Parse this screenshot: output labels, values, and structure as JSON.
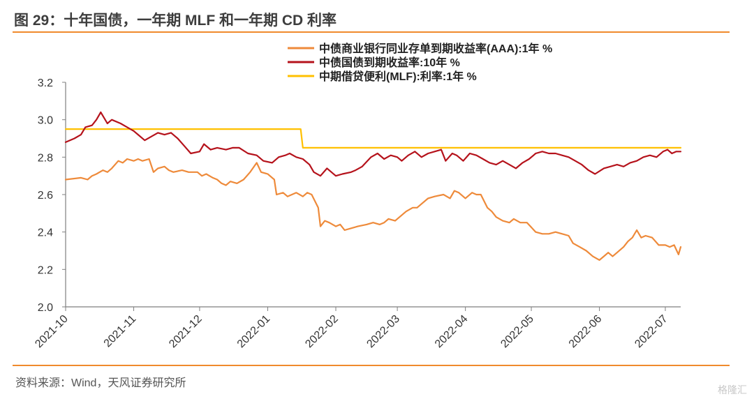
{
  "header": {
    "title": "图 29：十年国债，一年期 MLF 和一年期 CD 利率"
  },
  "footer": {
    "source": "资料来源：Wind，天风证券研究所",
    "watermark": "格隆汇"
  },
  "colors": {
    "cd": "#ee8a3a",
    "bond": "#b5121b",
    "mlf": "#ffc000",
    "accent_rule": "#f08a2c",
    "axis": "#7f7f7f"
  },
  "chart_data": {
    "type": "line",
    "title": "",
    "xlabel": "",
    "ylabel": "",
    "ylim": [
      2.0,
      3.2
    ],
    "yticks": [
      "2.0",
      "2.2",
      "2.4",
      "2.6",
      "2.8",
      "3.0",
      "3.2"
    ],
    "x_range": [
      "2021-10-01",
      "2022-07-08"
    ],
    "xticks": [
      "2021-10",
      "2021-11",
      "2021-12",
      "2022-01",
      "2022-02",
      "2022-03",
      "2022-04",
      "2022-05",
      "2022-06",
      "2022-07"
    ],
    "grid": false,
    "legend_position": "top",
    "series": [
      {
        "name": "中债商业银行同业存单到期收益率(AAA):1年 %",
        "color": "#ee8a3a",
        "points": [
          [
            "2021-10-01",
            2.68
          ],
          [
            "2021-10-08",
            2.69
          ],
          [
            "2021-10-11",
            2.68
          ],
          [
            "2021-10-13",
            2.7
          ],
          [
            "2021-10-15",
            2.71
          ],
          [
            "2021-10-18",
            2.73
          ],
          [
            "2021-10-20",
            2.72
          ],
          [
            "2021-10-22",
            2.74
          ],
          [
            "2021-10-25",
            2.78
          ],
          [
            "2021-10-27",
            2.77
          ],
          [
            "2021-10-29",
            2.79
          ],
          [
            "2021-11-01",
            2.78
          ],
          [
            "2021-11-03",
            2.79
          ],
          [
            "2021-11-05",
            2.78
          ],
          [
            "2021-11-08",
            2.79
          ],
          [
            "2021-11-10",
            2.72
          ],
          [
            "2021-11-12",
            2.74
          ],
          [
            "2021-11-15",
            2.75
          ],
          [
            "2021-11-17",
            2.73
          ],
          [
            "2021-11-19",
            2.72
          ],
          [
            "2021-11-23",
            2.73
          ],
          [
            "2021-11-26",
            2.72
          ],
          [
            "2021-11-30",
            2.72
          ],
          [
            "2021-12-02",
            2.7
          ],
          [
            "2021-12-04",
            2.71
          ],
          [
            "2021-12-07",
            2.69
          ],
          [
            "2021-12-09",
            2.68
          ],
          [
            "2021-12-11",
            2.66
          ],
          [
            "2021-12-13",
            2.65
          ],
          [
            "2021-12-15",
            2.67
          ],
          [
            "2021-12-18",
            2.66
          ],
          [
            "2021-12-21",
            2.68
          ],
          [
            "2021-12-24",
            2.72
          ],
          [
            "2021-12-27",
            2.77
          ],
          [
            "2021-12-29",
            2.72
          ],
          [
            "2022-01-01",
            2.71
          ],
          [
            "2022-01-04",
            2.68
          ],
          [
            "2022-01-05",
            2.6
          ],
          [
            "2022-01-08",
            2.61
          ],
          [
            "2022-01-10",
            2.59
          ],
          [
            "2022-01-12",
            2.6
          ],
          [
            "2022-01-14",
            2.61
          ],
          [
            "2022-01-17",
            2.59
          ],
          [
            "2022-01-19",
            2.61
          ],
          [
            "2022-01-21",
            2.6
          ],
          [
            "2022-01-24",
            2.53
          ],
          [
            "2022-01-25",
            2.43
          ],
          [
            "2022-01-27",
            2.46
          ],
          [
            "2022-01-29",
            2.45
          ],
          [
            "2022-02-01",
            2.43
          ],
          [
            "2022-02-03",
            2.44
          ],
          [
            "2022-02-05",
            2.41
          ],
          [
            "2022-02-08",
            2.42
          ],
          [
            "2022-02-11",
            2.43
          ],
          [
            "2022-02-15",
            2.44
          ],
          [
            "2022-02-18",
            2.45
          ],
          [
            "2022-02-21",
            2.44
          ],
          [
            "2022-02-23",
            2.45
          ],
          [
            "2022-02-25",
            2.47
          ],
          [
            "2022-02-28",
            2.46
          ],
          [
            "2022-03-02",
            2.48
          ],
          [
            "2022-03-05",
            2.51
          ],
          [
            "2022-03-08",
            2.53
          ],
          [
            "2022-03-10",
            2.53
          ],
          [
            "2022-03-12",
            2.55
          ],
          [
            "2022-03-15",
            2.58
          ],
          [
            "2022-03-18",
            2.59
          ],
          [
            "2022-03-22",
            2.6
          ],
          [
            "2022-03-25",
            2.58
          ],
          [
            "2022-03-27",
            2.62
          ],
          [
            "2022-03-29",
            2.61
          ],
          [
            "2022-04-01",
            2.58
          ],
          [
            "2022-04-04",
            2.61
          ],
          [
            "2022-04-06",
            2.6
          ],
          [
            "2022-04-08",
            2.6
          ],
          [
            "2022-04-11",
            2.53
          ],
          [
            "2022-04-13",
            2.51
          ],
          [
            "2022-04-15",
            2.48
          ],
          [
            "2022-04-18",
            2.46
          ],
          [
            "2022-04-21",
            2.45
          ],
          [
            "2022-04-23",
            2.47
          ],
          [
            "2022-04-26",
            2.45
          ],
          [
            "2022-04-29",
            2.45
          ],
          [
            "2022-05-03",
            2.4
          ],
          [
            "2022-05-06",
            2.39
          ],
          [
            "2022-05-09",
            2.39
          ],
          [
            "2022-05-12",
            2.4
          ],
          [
            "2022-05-15",
            2.39
          ],
          [
            "2022-05-18",
            2.38
          ],
          [
            "2022-05-20",
            2.34
          ],
          [
            "2022-05-23",
            2.32
          ],
          [
            "2022-05-26",
            2.3
          ],
          [
            "2022-05-29",
            2.27
          ],
          [
            "2022-06-01",
            2.25
          ],
          [
            "2022-06-03",
            2.27
          ],
          [
            "2022-06-05",
            2.29
          ],
          [
            "2022-06-07",
            2.27
          ],
          [
            "2022-06-09",
            2.29
          ],
          [
            "2022-06-12",
            2.32
          ],
          [
            "2022-06-14",
            2.35
          ],
          [
            "2022-06-16",
            2.37
          ],
          [
            "2022-06-18",
            2.41
          ],
          [
            "2022-06-20",
            2.37
          ],
          [
            "2022-06-22",
            2.38
          ],
          [
            "2022-06-25",
            2.37
          ],
          [
            "2022-06-28",
            2.33
          ],
          [
            "2022-07-01",
            2.33
          ],
          [
            "2022-07-03",
            2.32
          ],
          [
            "2022-07-05",
            2.33
          ],
          [
            "2022-07-07",
            2.28
          ],
          [
            "2022-07-08",
            2.32
          ]
        ]
      },
      {
        "name": "中债国债到期收益率:10年 %",
        "color": "#b5121b",
        "points": [
          [
            "2021-10-01",
            2.88
          ],
          [
            "2021-10-05",
            2.9
          ],
          [
            "2021-10-08",
            2.92
          ],
          [
            "2021-10-10",
            2.96
          ],
          [
            "2021-10-13",
            2.97
          ],
          [
            "2021-10-15",
            3.0
          ],
          [
            "2021-10-17",
            3.04
          ],
          [
            "2021-10-20",
            2.98
          ],
          [
            "2021-10-22",
            3.0
          ],
          [
            "2021-10-26",
            2.98
          ],
          [
            "2021-10-29",
            2.96
          ],
          [
            "2021-11-01",
            2.94
          ],
          [
            "2021-11-03",
            2.92
          ],
          [
            "2021-11-06",
            2.89
          ],
          [
            "2021-11-09",
            2.91
          ],
          [
            "2021-11-12",
            2.93
          ],
          [
            "2021-11-15",
            2.92
          ],
          [
            "2021-11-18",
            2.93
          ],
          [
            "2021-11-21",
            2.9
          ],
          [
            "2021-11-24",
            2.86
          ],
          [
            "2021-11-27",
            2.82
          ],
          [
            "2021-12-01",
            2.83
          ],
          [
            "2021-12-03",
            2.87
          ],
          [
            "2021-12-06",
            2.84
          ],
          [
            "2021-12-09",
            2.85
          ],
          [
            "2021-12-13",
            2.84
          ],
          [
            "2021-12-16",
            2.85
          ],
          [
            "2021-12-19",
            2.85
          ],
          [
            "2021-12-23",
            2.82
          ],
          [
            "2021-12-27",
            2.81
          ],
          [
            "2021-12-30",
            2.78
          ],
          [
            "2022-01-03",
            2.77
          ],
          [
            "2022-01-06",
            2.8
          ],
          [
            "2022-01-09",
            2.81
          ],
          [
            "2022-01-11",
            2.82
          ],
          [
            "2022-01-14",
            2.8
          ],
          [
            "2022-01-17",
            2.79
          ],
          [
            "2022-01-20",
            2.76
          ],
          [
            "2022-01-22",
            2.72
          ],
          [
            "2022-01-25",
            2.7
          ],
          [
            "2022-01-28",
            2.74
          ],
          [
            "2022-02-01",
            2.7
          ],
          [
            "2022-02-04",
            2.71
          ],
          [
            "2022-02-08",
            2.72
          ],
          [
            "2022-02-10",
            2.73
          ],
          [
            "2022-02-13",
            2.75
          ],
          [
            "2022-02-17",
            2.8
          ],
          [
            "2022-02-20",
            2.82
          ],
          [
            "2022-02-23",
            2.79
          ],
          [
            "2022-02-26",
            2.81
          ],
          [
            "2022-03-01",
            2.8
          ],
          [
            "2022-03-03",
            2.78
          ],
          [
            "2022-03-06",
            2.81
          ],
          [
            "2022-03-09",
            2.83
          ],
          [
            "2022-03-12",
            2.8
          ],
          [
            "2022-03-15",
            2.82
          ],
          [
            "2022-03-18",
            2.83
          ],
          [
            "2022-03-21",
            2.84
          ],
          [
            "2022-03-23",
            2.78
          ],
          [
            "2022-03-26",
            2.82
          ],
          [
            "2022-03-28",
            2.81
          ],
          [
            "2022-03-31",
            2.78
          ],
          [
            "2022-04-03",
            2.82
          ],
          [
            "2022-04-06",
            2.81
          ],
          [
            "2022-04-09",
            2.79
          ],
          [
            "2022-04-12",
            2.77
          ],
          [
            "2022-04-15",
            2.76
          ],
          [
            "2022-04-18",
            2.78
          ],
          [
            "2022-04-21",
            2.76
          ],
          [
            "2022-04-24",
            2.74
          ],
          [
            "2022-04-27",
            2.77
          ],
          [
            "2022-04-30",
            2.79
          ],
          [
            "2022-05-03",
            2.82
          ],
          [
            "2022-05-06",
            2.83
          ],
          [
            "2022-05-09",
            2.82
          ],
          [
            "2022-05-12",
            2.82
          ],
          [
            "2022-05-15",
            2.81
          ],
          [
            "2022-05-18",
            2.8
          ],
          [
            "2022-05-21",
            2.78
          ],
          [
            "2022-05-24",
            2.76
          ],
          [
            "2022-05-27",
            2.73
          ],
          [
            "2022-05-30",
            2.71
          ],
          [
            "2022-06-03",
            2.74
          ],
          [
            "2022-06-06",
            2.75
          ],
          [
            "2022-06-09",
            2.76
          ],
          [
            "2022-06-12",
            2.75
          ],
          [
            "2022-06-15",
            2.77
          ],
          [
            "2022-06-18",
            2.78
          ],
          [
            "2022-06-21",
            2.8
          ],
          [
            "2022-06-24",
            2.81
          ],
          [
            "2022-06-27",
            2.8
          ],
          [
            "2022-06-30",
            2.83
          ],
          [
            "2022-07-02",
            2.84
          ],
          [
            "2022-07-04",
            2.82
          ],
          [
            "2022-07-06",
            2.83
          ],
          [
            "2022-07-08",
            2.83
          ]
        ]
      },
      {
        "name": "中期借贷便利(MLF):利率:1年 %",
        "color": "#ffc000",
        "points": [
          [
            "2021-10-01",
            2.95
          ],
          [
            "2022-01-16",
            2.95
          ],
          [
            "2022-01-17",
            2.85
          ],
          [
            "2022-07-08",
            2.85
          ]
        ]
      }
    ]
  }
}
